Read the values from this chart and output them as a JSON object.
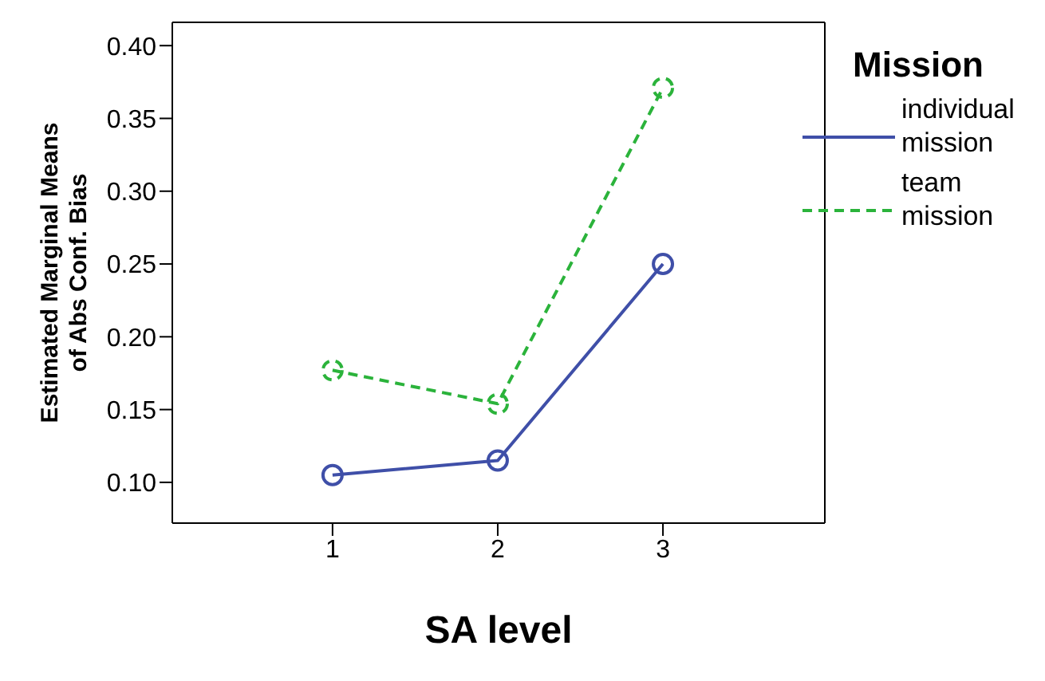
{
  "chart_data": {
    "type": "line",
    "xlabel": "SA level",
    "ylabel": "Estimated Marginal Means of Abs Conf. Bias",
    "legend_title": "Mission",
    "x": [
      1,
      2,
      3
    ],
    "series": [
      {
        "name": "individual mission",
        "color": "#3f4fa8",
        "values": [
          0.105,
          0.115,
          0.25
        ],
        "line_style": "solid"
      },
      {
        "name": "team mission",
        "color": "#2bb33b",
        "values": [
          0.177,
          0.154,
          0.371
        ],
        "line_style": "dashed"
      }
    ],
    "xlim": [
      0.03,
      3.98
    ],
    "xticks": [
      1,
      2,
      3
    ],
    "ylim": [
      0.072,
      0.416
    ],
    "yticks": [
      {
        "value": 0.1,
        "label": "0.10"
      },
      {
        "value": 0.15,
        "label": "0.15"
      },
      {
        "value": 0.2,
        "label": "0.20"
      },
      {
        "value": 0.25,
        "label": "0.25"
      },
      {
        "value": 0.3,
        "label": "0.30"
      },
      {
        "value": 0.35,
        "label": "0.35"
      },
      {
        "value": 0.4,
        "label": "0.40"
      }
    ],
    "marker": "circle",
    "grid": false,
    "legend": "right"
  }
}
